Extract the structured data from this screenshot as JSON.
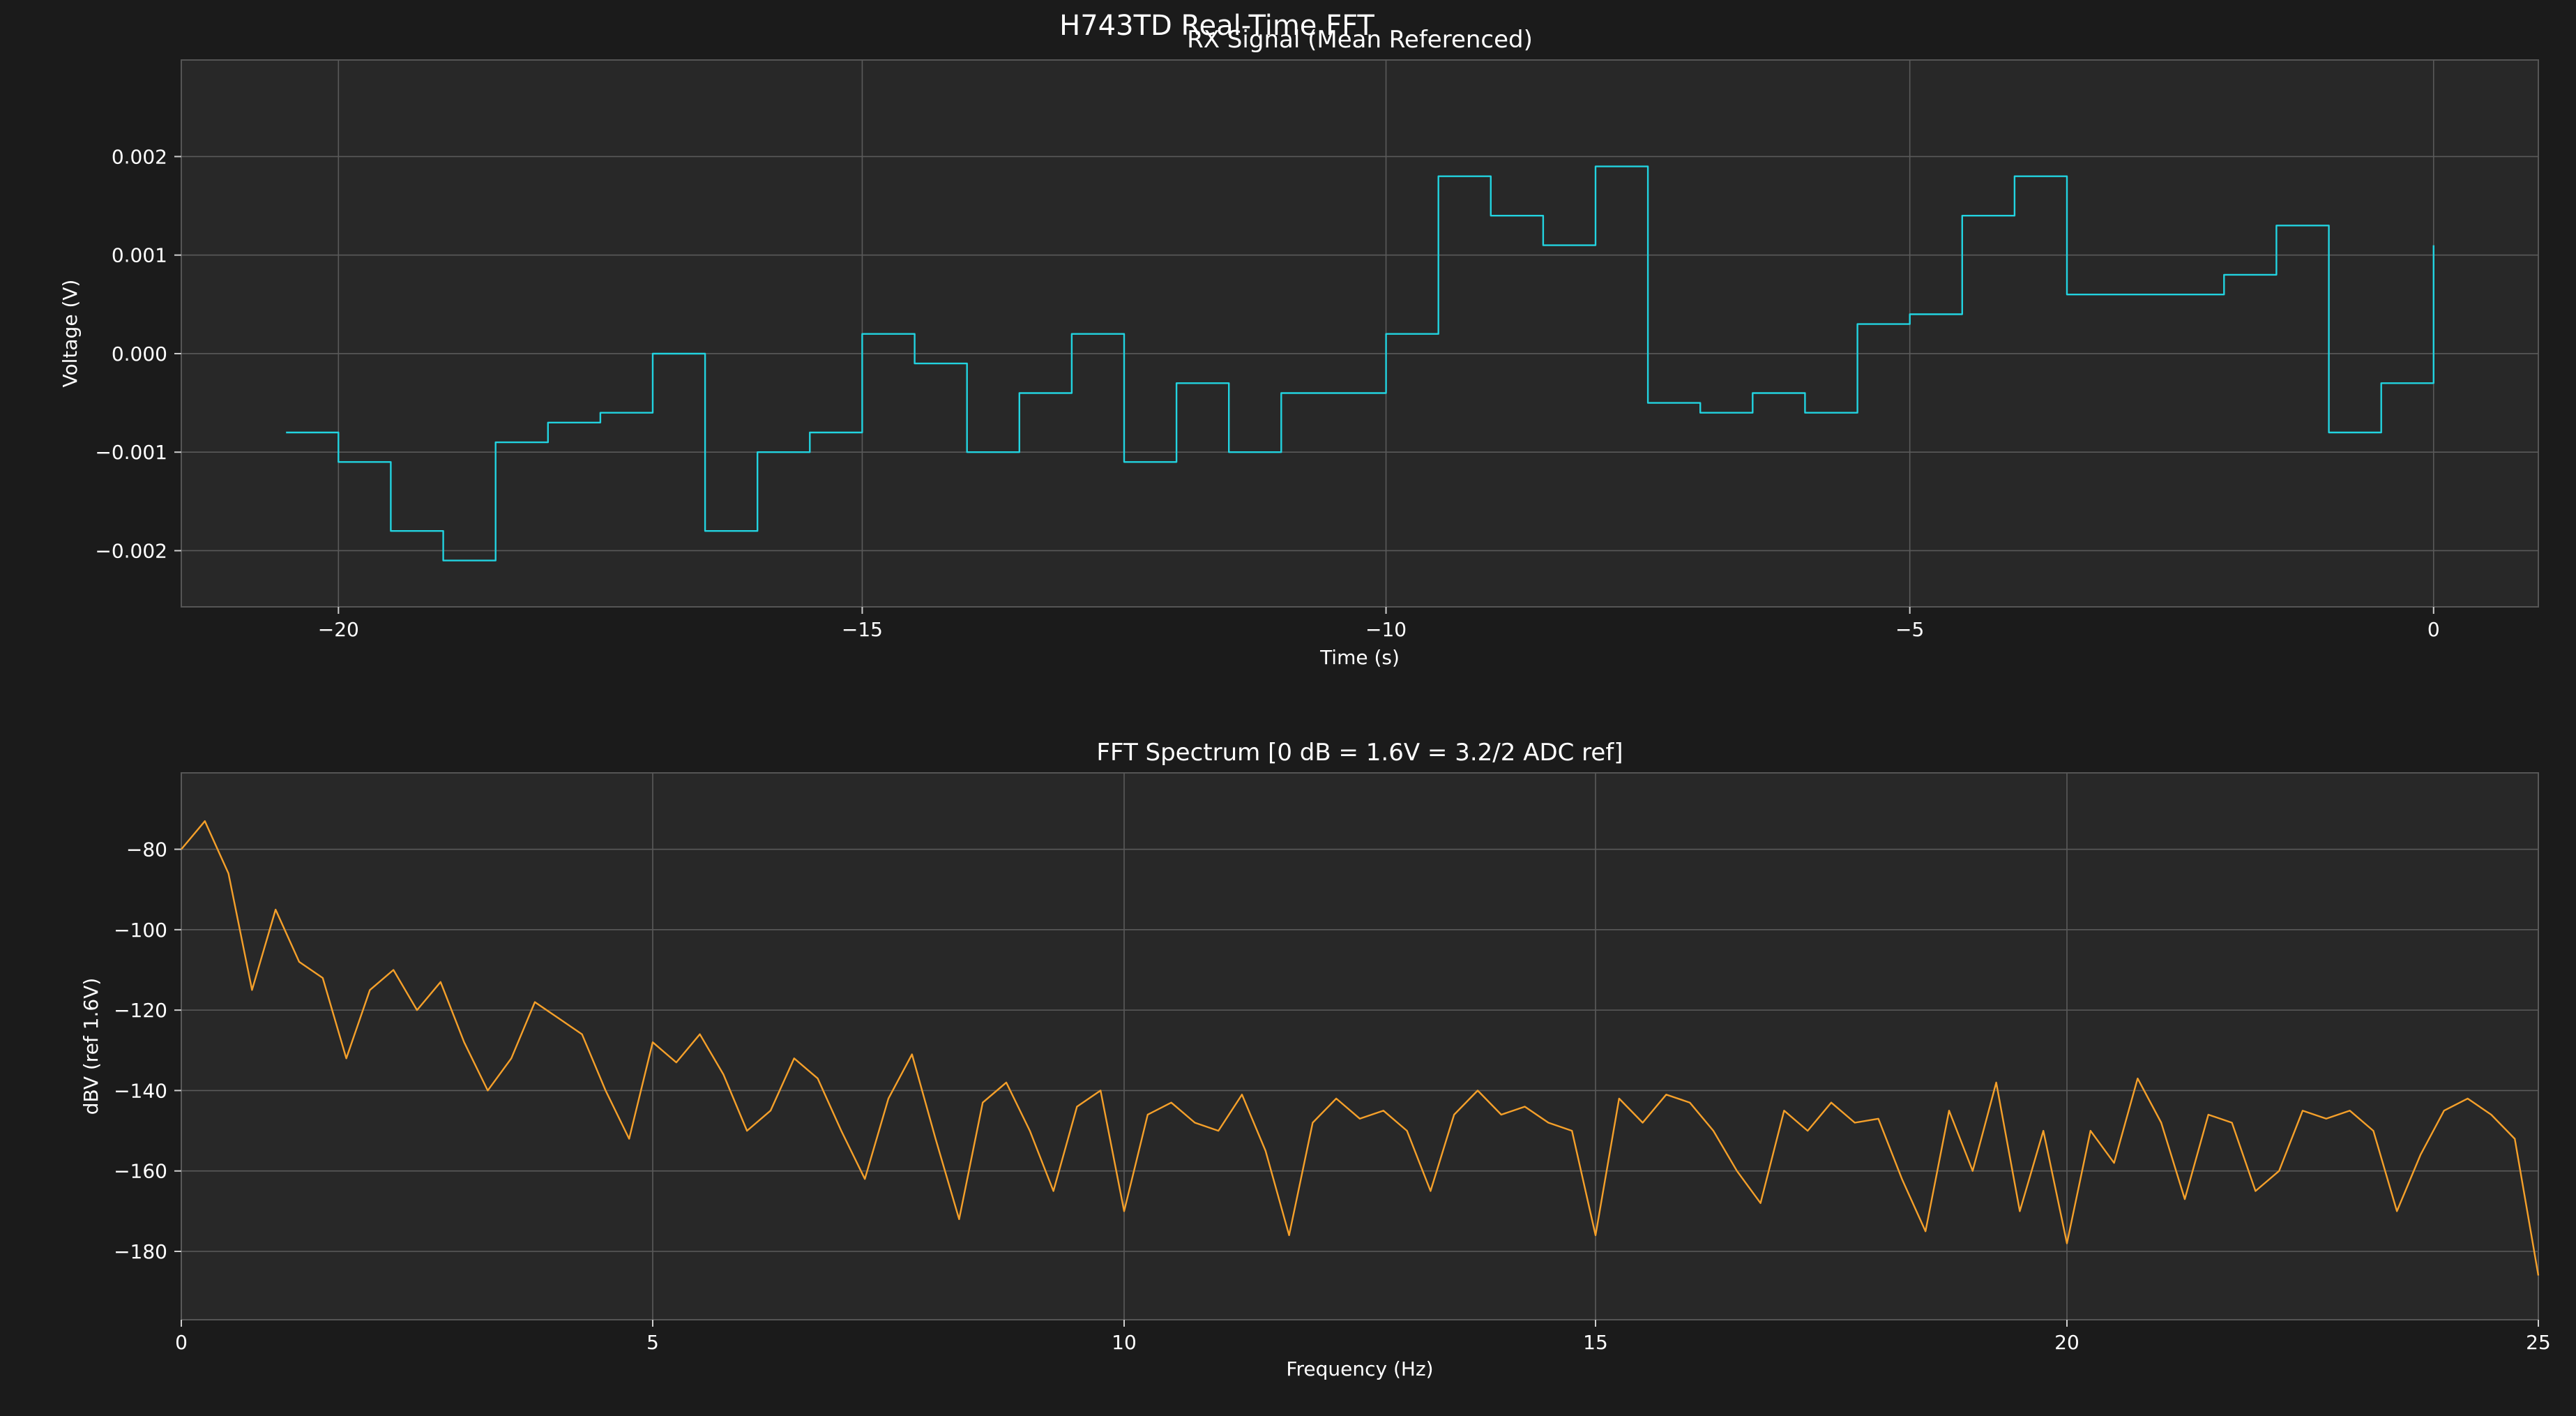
{
  "figure": {
    "title": "H743TD Real-Time FFT",
    "colors": {
      "background": "#1b1b1b",
      "axes_bg": "#282828",
      "grid": "#5a5a5a",
      "text": "#ffffff"
    }
  },
  "chart_data": [
    {
      "type": "line",
      "title": "RX Signal (Mean Referenced)",
      "xlabel": "Time (s)",
      "ylabel": "Voltage (V)",
      "xlim": [
        -21.5,
        1.0
      ],
      "ylim": [
        -0.00257,
        0.00298
      ],
      "xticks": [
        -20,
        -15,
        -10,
        -5,
        0
      ],
      "xtick_labels": [
        "−20",
        "−15",
        "−10",
        "−5",
        "0"
      ],
      "yticks": [
        -0.002,
        -0.001,
        0.0,
        0.001,
        0.002
      ],
      "ytick_labels": [
        "−0.002",
        "−0.001",
        "0.000",
        "0.001",
        "0.002"
      ],
      "grid": true,
      "step": true,
      "series": [
        {
          "color": "#22d3e0",
          "x": [
            -20.5,
            -20.0,
            -19.5,
            -19.0,
            -18.5,
            -18.0,
            -17.5,
            -17.0,
            -16.5,
            -16.0,
            -15.5,
            -15.0,
            -14.5,
            -14.0,
            -13.5,
            -13.0,
            -12.5,
            -12.0,
            -11.5,
            -11.0,
            -10.5,
            -10.0,
            -9.5,
            -9.0,
            -8.5,
            -8.0,
            -7.5,
            -7.0,
            -6.5,
            -6.0,
            -5.5,
            -5.0,
            -4.5,
            -4.0,
            -3.5,
            -3.0,
            -2.5,
            -2.0,
            -1.5,
            -1.0,
            -0.5,
            0.0
          ],
          "y": [
            -0.0008,
            -0.0011,
            -0.0018,
            -0.0021,
            -0.0009,
            -0.0007,
            -0.0006,
            0.0,
            -0.0018,
            -0.001,
            -0.0008,
            0.0002,
            -0.0001,
            -0.001,
            -0.0004,
            0.0002,
            -0.0011,
            -0.0003,
            -0.001,
            -0.0004,
            -0.0004,
            0.0002,
            0.0018,
            0.0014,
            0.0011,
            0.0019,
            -0.0005,
            -0.0006,
            -0.0004,
            -0.0006,
            0.0003,
            0.0004,
            0.0014,
            0.0018,
            0.0006,
            0.0006,
            0.0006,
            0.0008,
            0.0013,
            -0.0008,
            -0.0003,
            0.0011
          ]
        }
      ]
    },
    {
      "type": "line",
      "title": "FFT Spectrum  [0 dB = 1.6V = 3.2/2 ADC ref]",
      "xlabel": "Frequency (Hz)",
      "ylabel": "dBV (ref 1.6V)",
      "xlim": [
        0,
        25
      ],
      "ylim": [
        -197,
        -61
      ],
      "xticks": [
        0,
        5,
        10,
        15,
        20,
        25
      ],
      "xtick_labels": [
        "0",
        "5",
        "10",
        "15",
        "20",
        "25"
      ],
      "yticks": [
        -80,
        -100,
        -120,
        -140,
        -160,
        -180
      ],
      "ytick_labels": [
        "−80",
        "−100",
        "−120",
        "−140",
        "−160",
        "−180"
      ],
      "grid": true,
      "step": false,
      "series": [
        {
          "color": "#f5a02a",
          "x": [
            0,
            0.25,
            0.5,
            0.75,
            1.0,
            1.25,
            1.5,
            1.75,
            2.0,
            2.25,
            2.5,
            2.75,
            3.0,
            3.25,
            3.5,
            3.75,
            4.0,
            4.25,
            4.5,
            4.75,
            5.0,
            5.25,
            5.5,
            5.75,
            6.0,
            6.25,
            6.5,
            6.75,
            7.0,
            7.25,
            7.5,
            7.75,
            8.0,
            8.25,
            8.5,
            8.75,
            9.0,
            9.25,
            9.5,
            9.75,
            10.0,
            10.25,
            10.5,
            10.75,
            11.0,
            11.25,
            11.5,
            11.75,
            12.0,
            12.25,
            12.5,
            12.75,
            13.0,
            13.25,
            13.5,
            13.75,
            14.0,
            14.25,
            14.5,
            14.75,
            15.0,
            15.25,
            15.5,
            15.75,
            16.0,
            16.25,
            16.5,
            16.75,
            17.0,
            17.25,
            17.5,
            17.75,
            18.0,
            18.25,
            18.5,
            18.75,
            19.0,
            19.25,
            19.5,
            19.75,
            20.0,
            20.25,
            20.5,
            20.75,
            21.0,
            21.25,
            21.5,
            21.75,
            22.0,
            22.25,
            22.5,
            22.75,
            23.0,
            23.25,
            23.5,
            23.75,
            24.0,
            24.25,
            24.5,
            24.75,
            25.0
          ],
          "y": [
            -80,
            -73,
            -86,
            -115,
            -95,
            -108,
            -112,
            -132,
            -115,
            -110,
            -120,
            -113,
            -128,
            -140,
            -132,
            -118,
            -122,
            -126,
            -140,
            -152,
            -128,
            -133,
            -126,
            -136,
            -150,
            -145,
            -132,
            -137,
            -150,
            -162,
            -142,
            -131,
            -152,
            -172,
            -143,
            -138,
            -150,
            -165,
            -144,
            -140,
            -170,
            -146,
            -143,
            -148,
            -150,
            -141,
            -155,
            -176,
            -148,
            -142,
            -147,
            -145,
            -150,
            -165,
            -146,
            -140,
            -146,
            -144,
            -148,
            -150,
            -176,
            -142,
            -148,
            -141,
            -143,
            -150,
            -160,
            -168,
            -145,
            -150,
            -143,
            -148,
            -147,
            -162,
            -175,
            -145,
            -160,
            -138,
            -170,
            -150,
            -178,
            -150,
            -158,
            -137,
            -148,
            -167,
            -146,
            -148,
            -165,
            -160,
            -145,
            -147,
            -145,
            -150,
            -170,
            -156,
            -145,
            -142,
            -146,
            -152,
            -186
          ]
        }
      ]
    }
  ]
}
